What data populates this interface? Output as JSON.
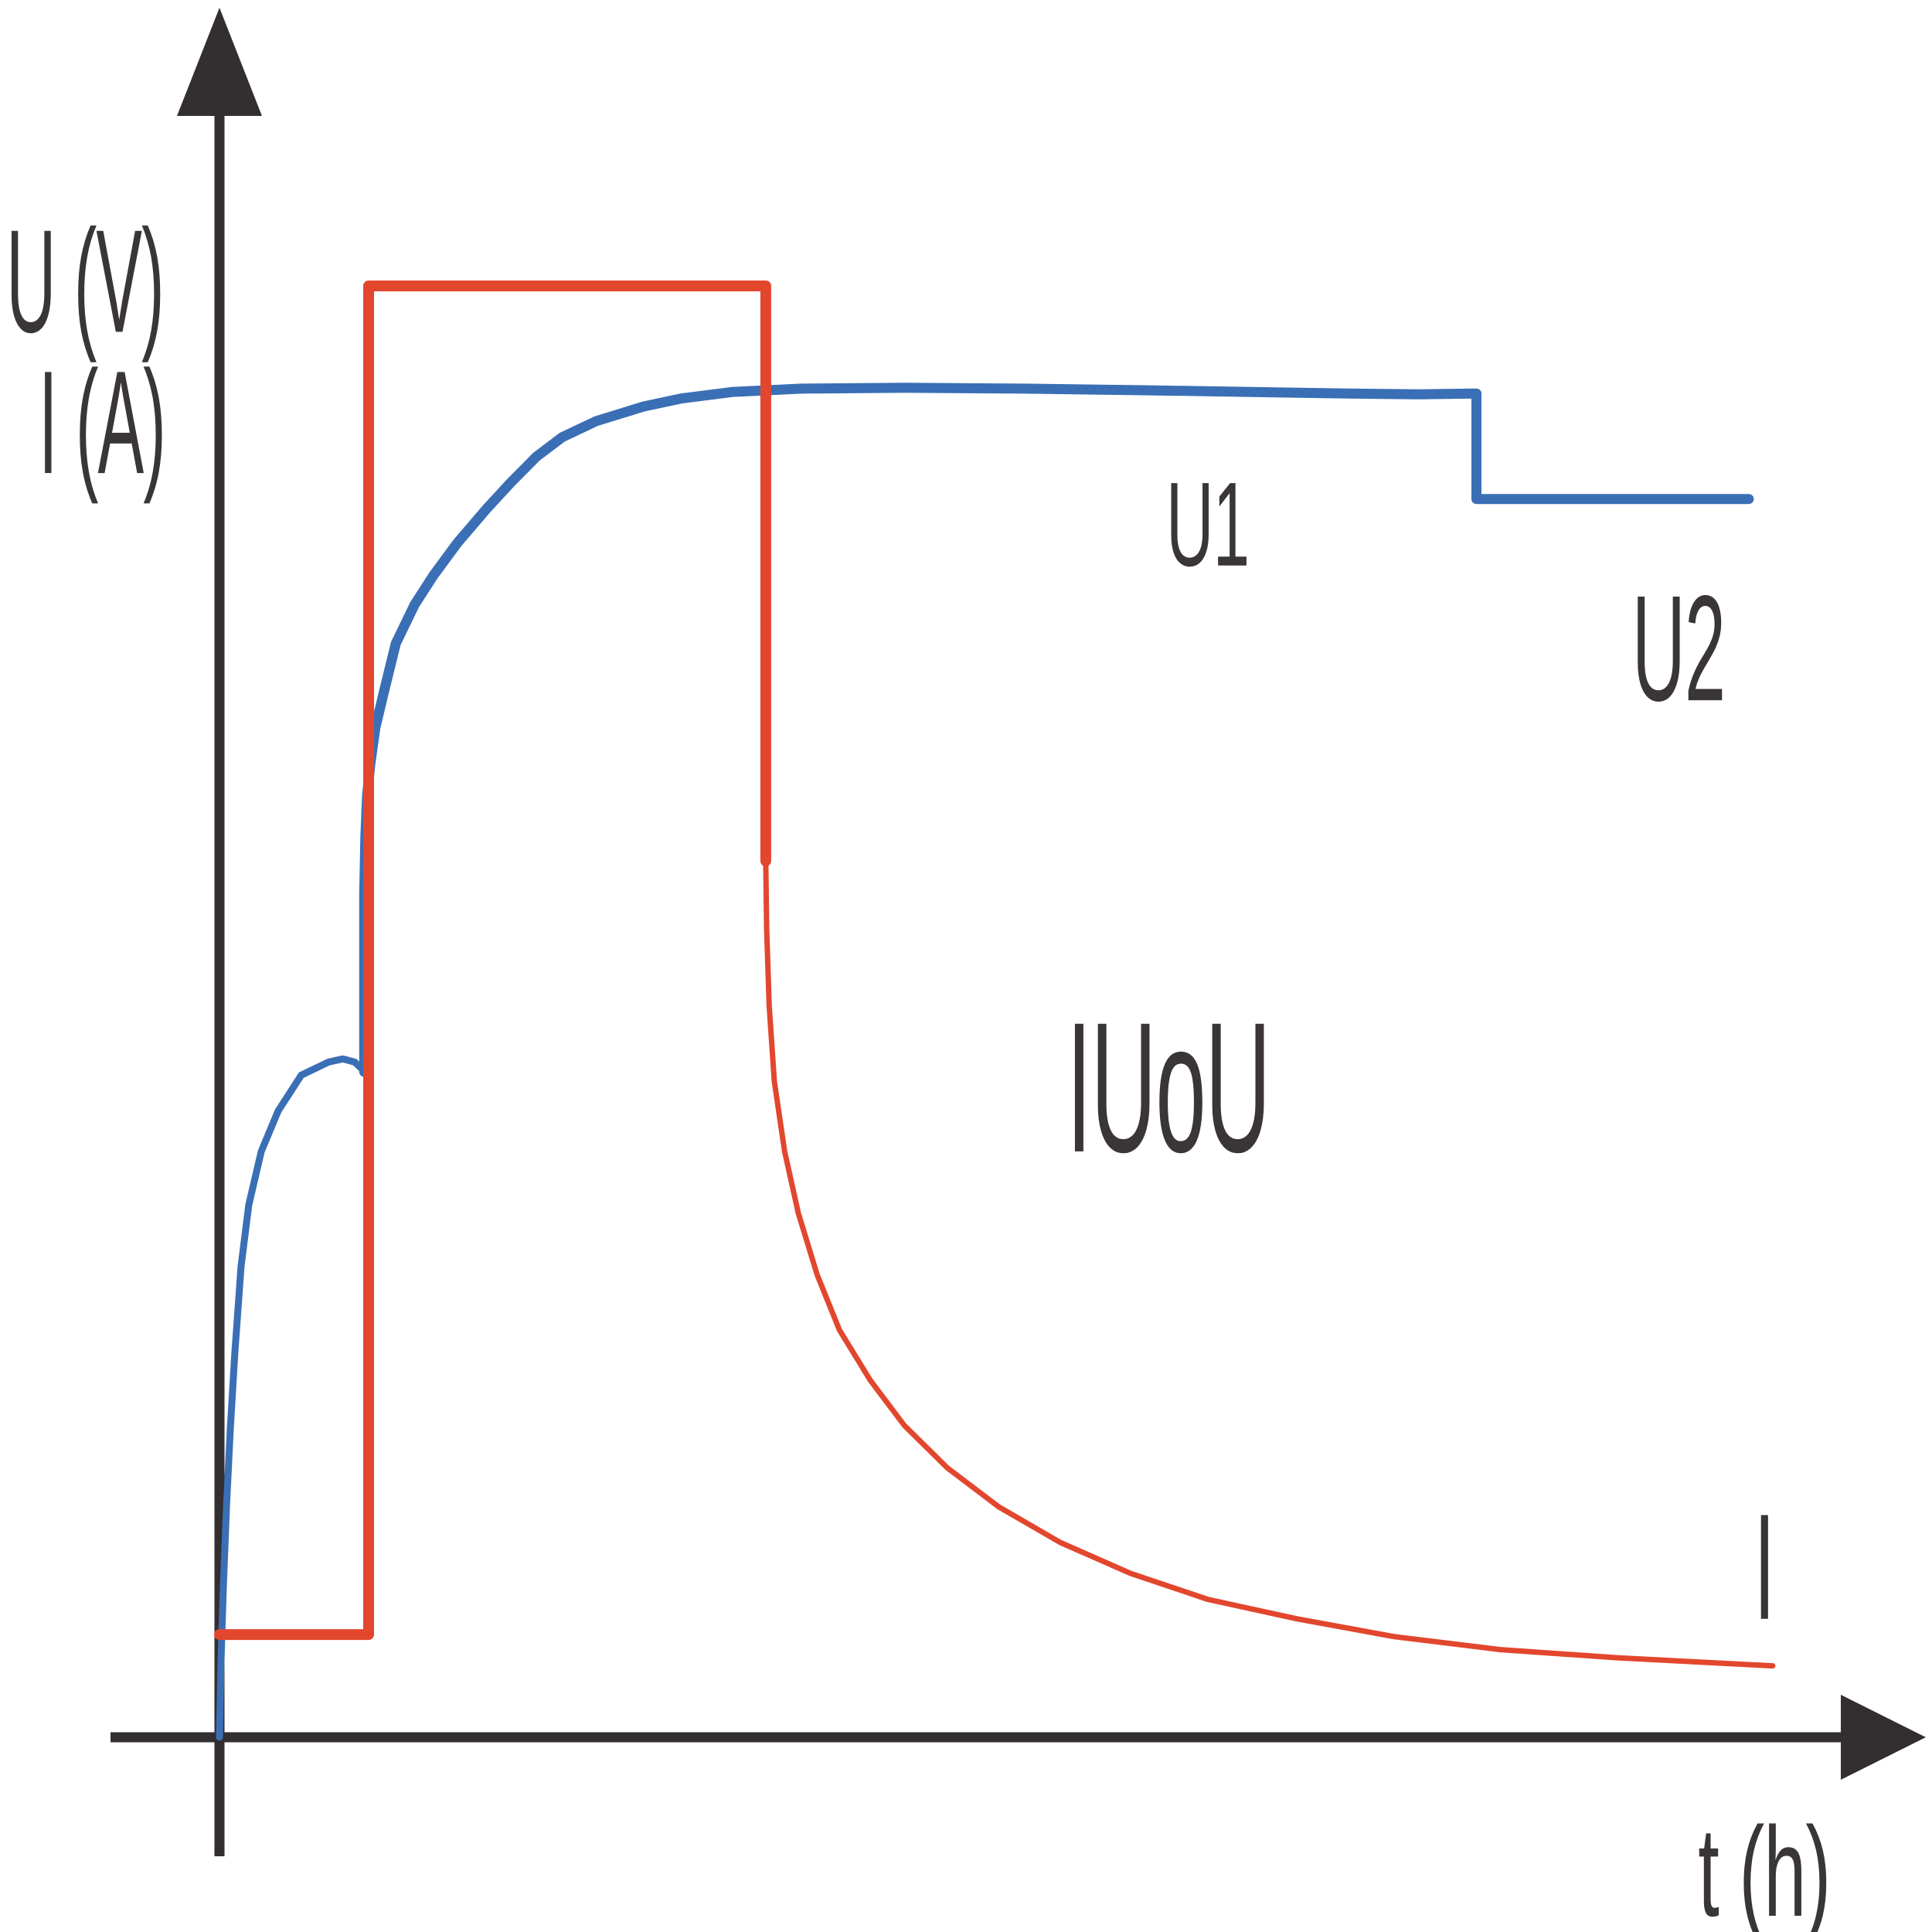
{
  "page": {
    "background_color": "#ffffff",
    "description": "IUoU battery charging characteristic chart"
  },
  "chart_data": {
    "type": "line",
    "title": "",
    "xlabel": "t (h)",
    "ylabel": "U (V) / I (A)",
    "axes": {
      "x_range": [
        0,
        100
      ],
      "y_range": [
        0,
        100
      ],
      "unitless": true,
      "grid": false,
      "arrows": true,
      "axis_color": "#332e2f",
      "text_color": "#3a3536",
      "legend_position": "none"
    },
    "series": [
      {
        "id": "voltage-curve",
        "name": "U (battery voltage)",
        "color": "#3a6fb5",
        "segments": [
          {
            "width": 9,
            "points": [
              [
                0,
                0
              ],
              [
                0.09,
                4.7
              ],
              [
                0.23,
                9.4
              ],
              [
                0.41,
                14.2
              ],
              [
                0.63,
                19.0
              ],
              [
                0.9,
                23.7
              ],
              [
                1.26,
                29.0
              ],
              [
                1.71,
                32.8
              ],
              [
                2.44,
                36.1
              ],
              [
                3.43,
                38.6
              ],
              [
                4.78,
                40.8
              ],
              [
                6.36,
                41.6
              ],
              [
                7.2,
                41.8
              ],
              [
                7.9,
                41.6
              ],
              [
                8.3,
                41.2
              ],
              [
                8.45,
                41.0
              ]
            ]
          },
          {
            "width": 13,
            "points": [
              [
                8.45,
                41.0
              ],
              [
                8.45,
                52.0
              ],
              [
                8.52,
                55.5
              ],
              [
                8.62,
                58.0
              ],
              [
                8.8,
                59.9
              ],
              [
                9.1,
                62.2
              ],
              [
                9.6,
                64.4
              ],
              [
                10.3,
                67.4
              ],
              [
                11.4,
                69.8
              ],
              [
                12.5,
                71.6
              ],
              [
                13.9,
                73.6
              ],
              [
                15.6,
                75.7
              ],
              [
                17.0,
                77.3
              ],
              [
                18.5,
                78.9
              ],
              [
                20.0,
                80.1
              ],
              [
                22.0,
                81.1
              ],
              [
                24.77,
                82.0
              ],
              [
                27.0,
                82.5
              ],
              [
                30.0,
                82.9
              ],
              [
                34.0,
                83.1
              ],
              [
                40.0,
                83.15
              ],
              [
                47.0,
                83.1
              ],
              [
                54.0,
                83.0
              ],
              [
                60.0,
                82.9
              ],
              [
                66.0,
                82.8
              ],
              [
                70.0,
                82.75
              ],
              [
                73.4,
                82.8
              ],
              [
                73.4,
                76.3
              ],
              [
                89.3,
                76.3
              ]
            ]
          }
        ]
      },
      {
        "id": "current-curve",
        "name": "I (charging current)",
        "color": "#e2472e",
        "segments": [
          {
            "width": 14,
            "points": [
              [
                0,
                6.33
              ],
              [
                8.71,
                6.33
              ],
              [
                8.71,
                89.43
              ],
              [
                31.9,
                89.43
              ],
              [
                31.9,
                54.0
              ]
            ]
          },
          {
            "width": 7,
            "points": [
              [
                31.9,
                54.0
              ],
              [
                31.95,
                49.9
              ],
              [
                32.1,
                45.1
              ],
              [
                32.4,
                40.4
              ],
              [
                33.0,
                36.1
              ],
              [
                33.8,
                32.3
              ],
              [
                34.9,
                28.5
              ],
              [
                36.2,
                25.1
              ],
              [
                38.0,
                22.0
              ],
              [
                40.0,
                19.2
              ],
              [
                42.5,
                16.6
              ],
              [
                45.5,
                14.2
              ],
              [
                49.1,
                12.0
              ],
              [
                53.2,
                10.1
              ],
              [
                57.7,
                8.5
              ],
              [
                62.9,
                7.3
              ],
              [
                68.6,
                6.2
              ],
              [
                74.8,
                5.4
              ],
              [
                81.6,
                4.9
              ],
              [
                90.7,
                4.4
              ]
            ]
          }
        ]
      }
    ],
    "annotations": [
      {
        "id": "y-axis-label-voltage",
        "text": "U (V)",
        "x": -7.85,
        "y": 86.6,
        "size": 190,
        "sx": 0.47
      },
      {
        "id": "y-axis-label-current",
        "text": "I (A)",
        "x": -6.86,
        "y": 77.9,
        "size": 190,
        "sx": 0.47
      },
      {
        "id": "label-u1",
        "text": "U1",
        "x": 57.7,
        "y": 72.2,
        "size": 155,
        "sx": 0.55
      },
      {
        "id": "label-u2",
        "text": "U2",
        "x": 85.2,
        "y": 63.9,
        "size": 195,
        "sx": 0.49
      },
      {
        "id": "label-iuou",
        "text": "IUoU",
        "x": 55.4,
        "y": 36.1,
        "size": 240,
        "sx": 0.49
      },
      {
        "id": "label-i",
        "text": "I",
        "x": 90.2,
        "y": 7.3,
        "size": 195,
        "sx": 0.5
      },
      {
        "id": "x-axis-label-time",
        "text": "t (h)",
        "x": 90.2,
        "y": -11.0,
        "size": 165,
        "sx": 0.6
      }
    ]
  }
}
